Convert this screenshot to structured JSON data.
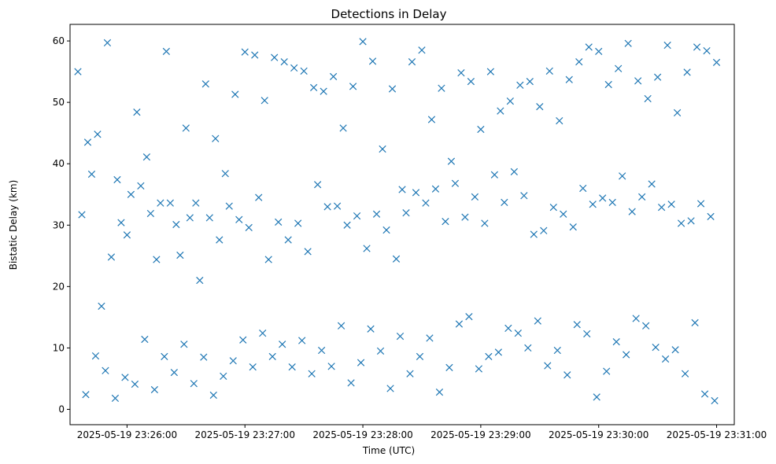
{
  "chart_data": {
    "type": "scatter",
    "title": "Detections in Delay",
    "xlabel": "Time (UTC)",
    "ylabel": "Bistatic Delay (km)",
    "xlim": [
      "2025-05-19 23:25:31",
      "2025-05-19 23:31:09"
    ],
    "ylim": [
      -2.5,
      62.7
    ],
    "xticks": [
      "2025-05-19 23:26:00",
      "2025-05-19 23:27:00",
      "2025-05-19 23:28:00",
      "2025-05-19 23:29:00",
      "2025-05-19 23:30:00",
      "2025-05-19 23:31:00"
    ],
    "yticks": [
      "0",
      "10",
      "20",
      "30",
      "40",
      "50",
      "60"
    ],
    "marker": "x",
    "marker_color": "#1f77b4",
    "grid": false,
    "x": [
      "2025-05-19 23:25:35",
      "2025-05-19 23:25:40",
      "2025-05-19 23:25:45",
      "2025-05-19 23:25:50",
      "2025-05-19 23:25:55",
      "2025-05-19 23:26:00",
      "2025-05-19 23:26:05",
      "2025-05-19 23:26:10",
      "2025-05-19 23:26:15",
      "2025-05-19 23:26:20",
      "2025-05-19 23:26:25",
      "2025-05-19 23:26:30",
      "2025-05-19 23:26:35",
      "2025-05-19 23:26:40",
      "2025-05-19 23:26:45",
      "2025-05-19 23:26:50",
      "2025-05-19 23:26:55",
      "2025-05-19 23:27:00",
      "2025-05-19 23:27:05",
      "2025-05-19 23:27:10",
      "2025-05-19 23:27:15",
      "2025-05-19 23:27:20",
      "2025-05-19 23:27:25",
      "2025-05-19 23:27:30",
      "2025-05-19 23:27:35",
      "2025-05-19 23:27:40",
      "2025-05-19 23:27:45",
      "2025-05-19 23:27:50",
      "2025-05-19 23:27:55",
      "2025-05-19 23:28:00",
      "2025-05-19 23:28:05",
      "2025-05-19 23:28:10",
      "2025-05-19 23:28:15",
      "2025-05-19 23:28:20",
      "2025-05-19 23:28:25",
      "2025-05-19 23:28:30",
      "2025-05-19 23:28:35",
      "2025-05-19 23:28:40",
      "2025-05-19 23:28:45",
      "2025-05-19 23:28:50",
      "2025-05-19 23:28:55",
      "2025-05-19 23:29:00",
      "2025-05-19 23:29:05",
      "2025-05-19 23:29:10",
      "2025-05-19 23:29:15",
      "2025-05-19 23:29:20",
      "2025-05-19 23:29:25",
      "2025-05-19 23:29:30",
      "2025-05-19 23:29:35",
      "2025-05-19 23:29:40",
      "2025-05-19 23:29:45",
      "2025-05-19 23:29:50",
      "2025-05-19 23:29:55",
      "2025-05-19 23:30:00",
      "2025-05-19 23:30:05",
      "2025-05-19 23:30:10",
      "2025-05-19 23:30:15",
      "2025-05-19 23:30:20",
      "2025-05-19 23:30:25",
      "2025-05-19 23:30:30",
      "2025-05-19 23:30:35",
      "2025-05-19 23:30:40",
      "2025-05-19 23:30:45",
      "2025-05-19 23:30:50",
      "2025-05-19 23:30:55",
      "2025-05-19 23:31:00",
      "2025-05-19 23:25:37",
      "2025-05-19 23:25:42",
      "2025-05-19 23:25:47",
      "2025-05-19 23:25:52",
      "2025-05-19 23:25:57",
      "2025-05-19 23:26:02",
      "2025-05-19 23:26:07",
      "2025-05-19 23:26:12",
      "2025-05-19 23:26:17",
      "2025-05-19 23:26:22",
      "2025-05-19 23:26:27",
      "2025-05-19 23:26:32",
      "2025-05-19 23:26:37",
      "2025-05-19 23:26:42",
      "2025-05-19 23:26:47",
      "2025-05-19 23:26:52",
      "2025-05-19 23:26:57",
      "2025-05-19 23:27:02",
      "2025-05-19 23:27:07",
      "2025-05-19 23:27:12",
      "2025-05-19 23:27:17",
      "2025-05-19 23:27:22",
      "2025-05-19 23:27:27",
      "2025-05-19 23:27:32",
      "2025-05-19 23:27:37",
      "2025-05-19 23:27:42",
      "2025-05-19 23:27:47",
      "2025-05-19 23:27:52",
      "2025-05-19 23:27:57",
      "2025-05-19 23:28:02",
      "2025-05-19 23:28:07",
      "2025-05-19 23:28:12",
      "2025-05-19 23:28:17",
      "2025-05-19 23:28:22",
      "2025-05-19 23:28:27",
      "2025-05-19 23:28:32",
      "2025-05-19 23:28:37",
      "2025-05-19 23:28:42",
      "2025-05-19 23:28:47",
      "2025-05-19 23:28:52",
      "2025-05-19 23:28:57",
      "2025-05-19 23:29:02",
      "2025-05-19 23:29:07",
      "2025-05-19 23:29:12",
      "2025-05-19 23:29:17",
      "2025-05-19 23:29:22",
      "2025-05-19 23:29:27",
      "2025-05-19 23:29:32",
      "2025-05-19 23:29:37",
      "2025-05-19 23:29:42",
      "2025-05-19 23:29:47",
      "2025-05-19 23:29:52",
      "2025-05-19 23:29:57",
      "2025-05-19 23:30:02",
      "2025-05-19 23:30:07",
      "2025-05-19 23:30:12",
      "2025-05-19 23:30:17",
      "2025-05-19 23:30:22",
      "2025-05-19 23:30:27",
      "2025-05-19 23:30:32",
      "2025-05-19 23:30:37",
      "2025-05-19 23:30:42",
      "2025-05-19 23:30:47",
      "2025-05-19 23:30:52",
      "2025-05-19 23:30:57",
      "2025-05-19 23:25:39",
      "2025-05-19 23:25:44",
      "2025-05-19 23:25:49",
      "2025-05-19 23:25:54",
      "2025-05-19 23:25:59",
      "2025-05-19 23:26:04",
      "2025-05-19 23:26:09",
      "2025-05-19 23:26:14",
      "2025-05-19 23:26:19",
      "2025-05-19 23:26:24",
      "2025-05-19 23:26:29",
      "2025-05-19 23:26:34",
      "2025-05-19 23:26:39",
      "2025-05-19 23:26:44",
      "2025-05-19 23:26:49",
      "2025-05-19 23:26:54",
      "2025-05-19 23:26:59",
      "2025-05-19 23:27:04",
      "2025-05-19 23:27:09",
      "2025-05-19 23:27:14",
      "2025-05-19 23:27:19",
      "2025-05-19 23:27:24",
      "2025-05-19 23:27:29",
      "2025-05-19 23:27:34",
      "2025-05-19 23:27:39",
      "2025-05-19 23:27:44",
      "2025-05-19 23:27:49",
      "2025-05-19 23:27:54",
      "2025-05-19 23:27:59",
      "2025-05-19 23:28:04",
      "2025-05-19 23:28:09",
      "2025-05-19 23:28:14",
      "2025-05-19 23:28:19",
      "2025-05-19 23:28:24",
      "2025-05-19 23:28:29",
      "2025-05-19 23:28:34",
      "2025-05-19 23:28:39",
      "2025-05-19 23:28:44",
      "2025-05-19 23:28:49",
      "2025-05-19 23:28:54",
      "2025-05-19 23:28:59",
      "2025-05-19 23:29:04",
      "2025-05-19 23:29:09",
      "2025-05-19 23:29:14",
      "2025-05-19 23:29:19",
      "2025-05-19 23:29:24",
      "2025-05-19 23:29:29",
      "2025-05-19 23:29:34",
      "2025-05-19 23:29:39",
      "2025-05-19 23:29:44",
      "2025-05-19 23:29:49",
      "2025-05-19 23:29:54",
      "2025-05-19 23:29:59",
      "2025-05-19 23:30:04",
      "2025-05-19 23:30:09",
      "2025-05-19 23:30:14",
      "2025-05-19 23:30:19",
      "2025-05-19 23:30:24",
      "2025-05-19 23:30:29",
      "2025-05-19 23:30:34",
      "2025-05-19 23:30:39",
      "2025-05-19 23:30:44",
      "2025-05-19 23:30:49",
      "2025-05-19 23:30:54",
      "2025-05-19 23:30:59"
    ],
    "y": [
      55.0,
      43.5,
      44.8,
      59.7,
      37.4,
      28.4,
      48.4,
      41.1,
      24.4,
      58.3,
      30.1,
      45.8,
      33.6,
      53.0,
      44.1,
      38.4,
      51.3,
      58.2,
      57.7,
      50.3,
      57.3,
      56.6,
      55.6,
      55.1,
      52.4,
      51.8,
      54.2,
      45.8,
      52.6,
      59.9,
      56.7,
      42.4,
      52.2,
      35.8,
      56.6,
      58.5,
      47.2,
      52.3,
      40.4,
      54.8,
      53.4,
      45.6,
      55.0,
      48.6,
      50.2,
      52.8,
      53.4,
      49.3,
      55.1,
      47.0,
      53.7,
      56.6,
      59.0,
      58.3,
      52.9,
      55.5,
      59.6,
      53.5,
      50.6,
      54.1,
      59.3,
      48.3,
      54.9,
      59.0,
      58.4,
      56.5,
      31.7,
      38.3,
      16.8,
      24.8,
      30.4,
      35.0,
      36.4,
      31.9,
      33.6,
      33.6,
      25.1,
      31.2,
      21.0,
      31.2,
      27.6,
      33.1,
      30.9,
      29.6,
      34.5,
      24.4,
      30.5,
      27.6,
      30.3,
      25.7,
      36.6,
      33.0,
      33.1,
      30.0,
      31.5,
      26.2,
      31.8,
      29.2,
      24.5,
      32.0,
      35.3,
      33.6,
      35.9,
      30.6,
      36.8,
      31.3,
      34.6,
      30.3,
      38.2,
      33.7,
      38.7,
      34.8,
      28.5,
      29.1,
      32.9,
      31.8,
      29.7,
      36.0,
      33.4,
      34.4,
      33.7,
      38.0,
      32.2,
      34.6,
      36.7,
      32.9,
      33.4,
      30.3,
      30.7,
      33.5,
      31.4,
      2.4,
      8.7,
      6.3,
      1.8,
      5.2,
      4.1,
      11.4,
      3.2,
      8.6,
      6.0,
      10.6,
      4.2,
      8.5,
      2.3,
      5.4,
      7.9,
      11.3,
      6.9,
      12.4,
      8.6,
      10.6,
      6.9,
      11.2,
      5.8,
      9.6,
      7.0,
      13.6,
      4.3,
      7.6,
      13.1,
      9.5,
      3.4,
      11.9,
      5.8,
      8.6,
      11.6,
      2.8,
      6.8,
      13.9,
      15.1,
      6.6,
      8.6,
      9.3,
      13.2,
      12.4,
      10.0,
      14.4,
      7.1,
      9.6,
      5.6,
      13.8,
      12.3,
      2.0,
      6.2,
      11.0,
      8.9,
      14.8,
      13.6,
      10.1,
      8.2,
      9.7,
      5.8,
      14.1,
      2.5,
      1.4
    ]
  }
}
